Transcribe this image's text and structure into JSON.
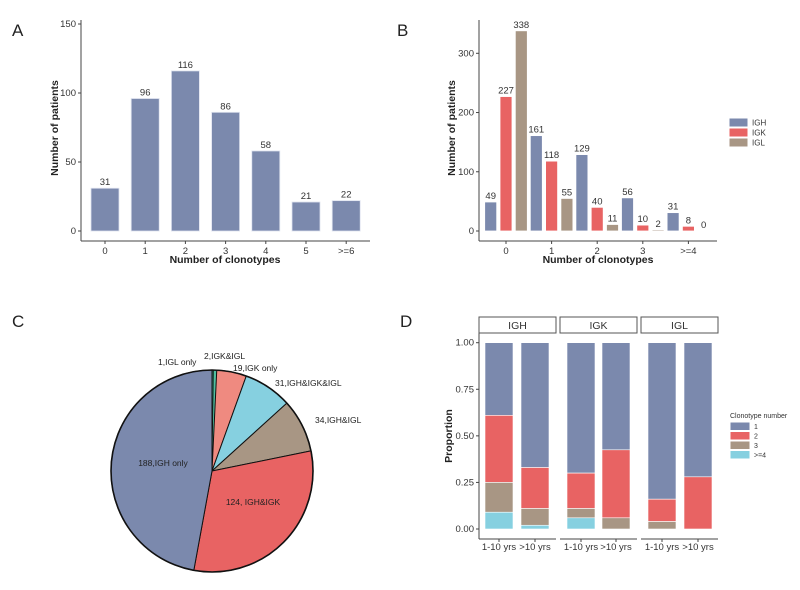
{
  "panels": {
    "a": "A",
    "b": "B",
    "c": "C",
    "d": "D"
  },
  "colors": {
    "IGH": "#7b89ad",
    "IGK": "#e86363",
    "IGL": "#a89684",
    "cyan": "#86d0e0",
    "salmon": "#ef8a80",
    "igl_only": "#1f6f5c",
    "igk_igl": "#4fbfa0"
  },
  "chart_data": [
    {
      "type": "bar",
      "panel": "A",
      "categories": [
        "0",
        "1",
        "2",
        "3",
        "4",
        "5",
        ">=6"
      ],
      "values": [
        31,
        96,
        116,
        86,
        58,
        21,
        22
      ],
      "xlabel": "Number of clonotypes",
      "ylabel": "Number of patients",
      "ylim": [
        0,
        150
      ],
      "yticks": [
        0,
        50,
        100,
        150
      ],
      "grid": false
    },
    {
      "type": "bar",
      "panel": "B",
      "categories": [
        "0",
        "1",
        "2",
        "3",
        ">=4"
      ],
      "series": [
        {
          "name": "IGH",
          "values": [
            49,
            161,
            129,
            56,
            31
          ]
        },
        {
          "name": "IGK",
          "values": [
            227,
            118,
            40,
            10,
            8
          ]
        },
        {
          "name": "IGL",
          "values": [
            338,
            55,
            11,
            2,
            0
          ]
        }
      ],
      "xlabel": "Number of clonotypes",
      "ylabel": "Number of patients",
      "ylim": [
        0,
        350
      ],
      "yticks": [
        0,
        100,
        200,
        300
      ],
      "legend": "right",
      "grid": false
    },
    {
      "type": "pie",
      "panel": "C",
      "slices": [
        {
          "label": "1,IGL only",
          "value": 1
        },
        {
          "label": "2,IGK&IGL",
          "value": 2
        },
        {
          "label": "19,IGK only",
          "value": 19
        },
        {
          "label": "31,IGH&IGK&IGL",
          "value": 31
        },
        {
          "label": "34,IGH&IGL",
          "value": 34
        },
        {
          "label": "124, IGH&IGK",
          "value": 124
        },
        {
          "label": "188,IGH only",
          "value": 188
        }
      ]
    },
    {
      "type": "bar",
      "stacked": true,
      "panel": "D",
      "facets": [
        "IGH",
        "IGK",
        "IGL"
      ],
      "categories": [
        "1-10 yrs",
        ">10 yrs"
      ],
      "ylabel": "Proportion",
      "ylim": [
        0,
        1
      ],
      "yticks": [
        "0.00",
        "0.25",
        "0.50",
        "0.75",
        "1.00"
      ],
      "legend_title": "Clonotype number",
      "legend": "right",
      "series_names": [
        "1",
        "2",
        "3",
        ">=4"
      ],
      "values": {
        "IGH": [
          [
            0.39,
            0.36,
            0.16,
            0.09
          ],
          [
            0.67,
            0.22,
            0.09,
            0.02
          ]
        ],
        "IGK": [
          [
            0.7,
            0.19,
            0.05,
            0.06
          ],
          [
            0.575,
            0.365,
            0.06,
            0
          ]
        ],
        "IGL": [
          [
            0.84,
            0.12,
            0.04,
            0
          ],
          [
            0.72,
            0.28,
            0,
            0
          ]
        ]
      }
    }
  ]
}
